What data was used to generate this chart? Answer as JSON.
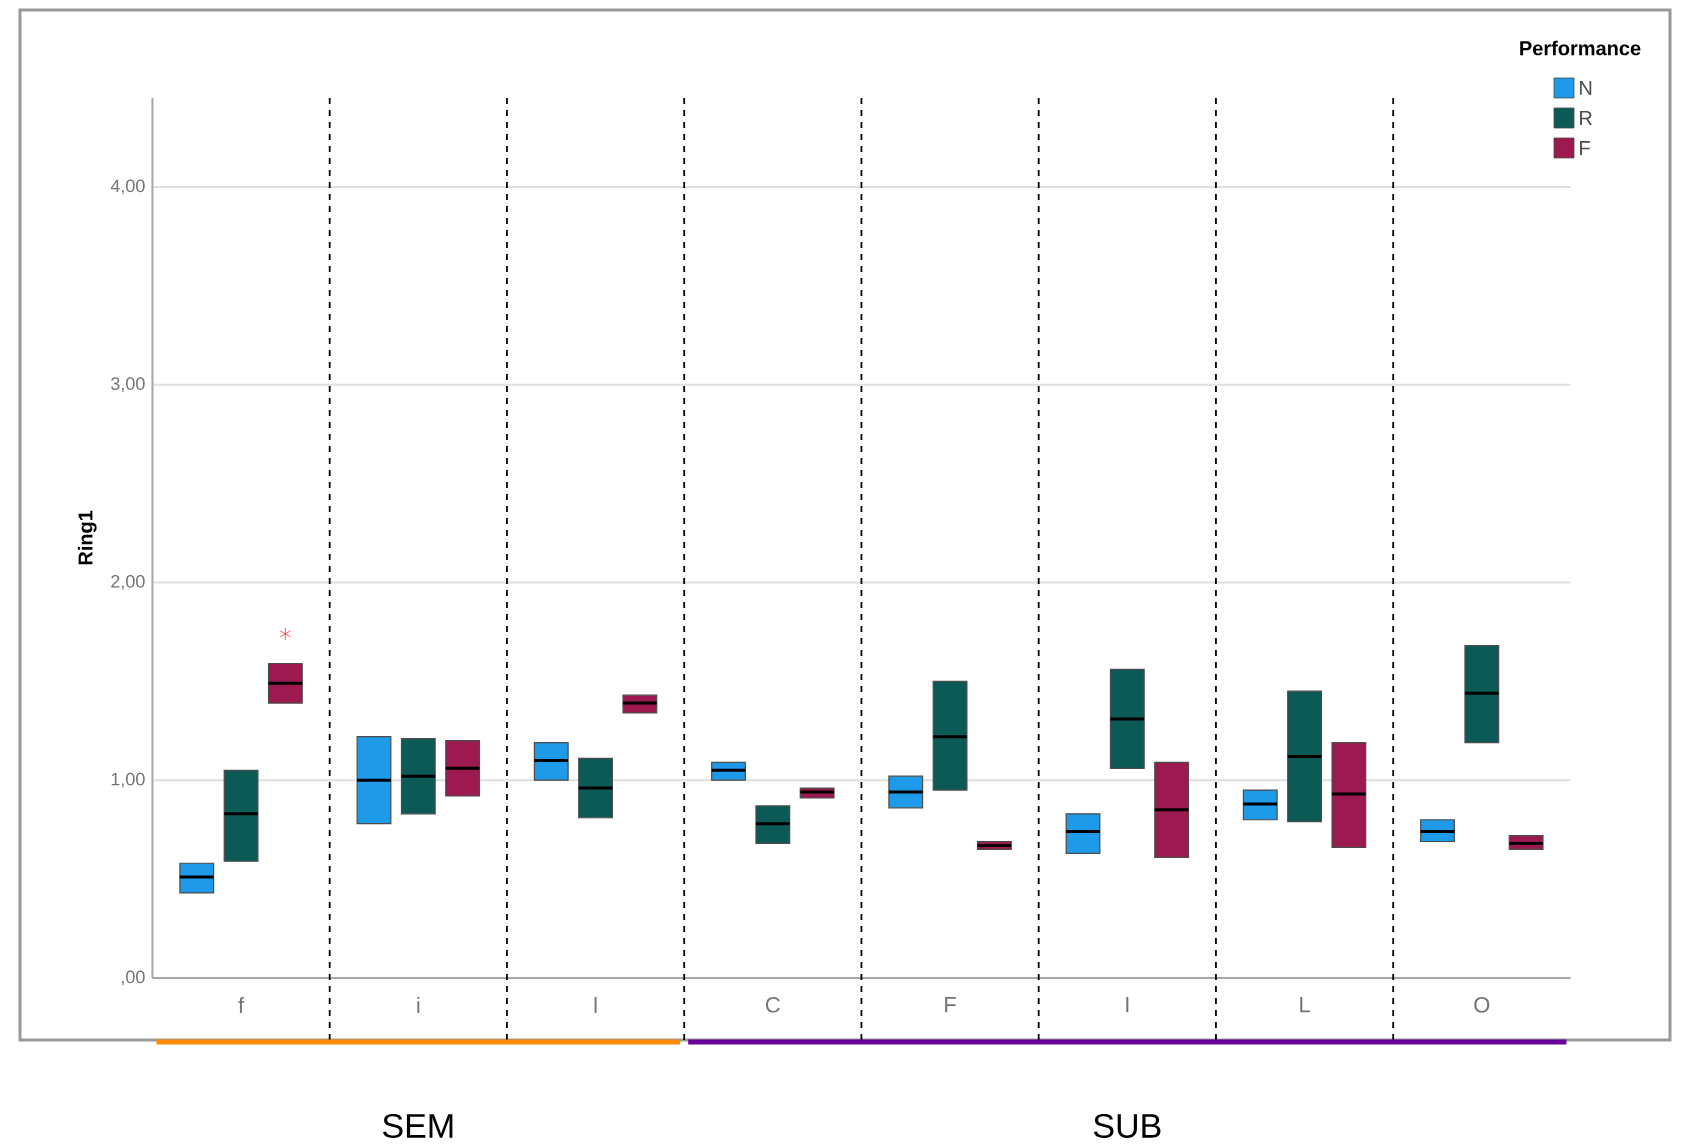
{
  "chart_data": {
    "type": "box",
    "ylabel": "Ring1",
    "legend_title": "Performance",
    "legend": "top right",
    "grid": "y",
    "categories": [
      "f",
      "i",
      "l",
      "C",
      "F",
      "I",
      "L",
      "O"
    ],
    "ylim": [
      0,
      4.45
    ],
    "yticks": [
      {
        "value": 0,
        "label": ",00"
      },
      {
        "value": 1,
        "label": "1,00"
      },
      {
        "value": 2,
        "label": "2,00"
      },
      {
        "value": 3,
        "label": "3,00"
      },
      {
        "value": 4,
        "label": "4,00"
      }
    ],
    "series": [
      {
        "name": "N",
        "color": "#1f9ae8",
        "boxes": [
          {
            "low": 0.43,
            "q1": 0.43,
            "median": 0.51,
            "q3": 0.58,
            "high": 0.58
          },
          {
            "low": 0.78,
            "q1": 0.78,
            "median": 1.0,
            "q3": 1.22,
            "high": 1.22
          },
          {
            "low": 1.0,
            "q1": 1.0,
            "median": 1.1,
            "q3": 1.19,
            "high": 1.19
          },
          {
            "low": 1.0,
            "q1": 1.0,
            "median": 1.05,
            "q3": 1.09,
            "high": 1.09
          },
          {
            "low": 0.86,
            "q1": 0.86,
            "median": 0.94,
            "q3": 1.02,
            "high": 1.02
          },
          {
            "low": 0.63,
            "q1": 0.63,
            "median": 0.74,
            "q3": 0.83,
            "high": 0.83
          },
          {
            "low": 0.8,
            "q1": 0.8,
            "median": 0.88,
            "q3": 0.95,
            "high": 0.95
          },
          {
            "low": 0.69,
            "q1": 0.69,
            "median": 0.74,
            "q3": 0.8,
            "high": 0.8
          }
        ]
      },
      {
        "name": "R",
        "color": "#0b5a55",
        "boxes": [
          {
            "low": 0.59,
            "q1": 0.59,
            "median": 0.83,
            "q3": 1.05,
            "high": 1.05
          },
          {
            "low": 0.83,
            "q1": 0.83,
            "median": 1.02,
            "q3": 1.21,
            "high": 1.21
          },
          {
            "low": 0.81,
            "q1": 0.81,
            "median": 0.96,
            "q3": 1.11,
            "high": 1.11
          },
          {
            "low": 0.68,
            "q1": 0.68,
            "median": 0.78,
            "q3": 0.87,
            "high": 0.87
          },
          {
            "low": 0.95,
            "q1": 0.95,
            "median": 1.22,
            "q3": 1.5,
            "high": 1.5
          },
          {
            "low": 1.06,
            "q1": 1.06,
            "median": 1.31,
            "q3": 1.56,
            "high": 1.56
          },
          {
            "low": 0.79,
            "q1": 0.79,
            "median": 1.12,
            "q3": 1.45,
            "high": 1.45
          },
          {
            "low": 1.19,
            "q1": 1.19,
            "median": 1.44,
            "q3": 1.68,
            "high": 1.68
          }
        ]
      },
      {
        "name": "F",
        "color": "#9c1a4f",
        "boxes": [
          {
            "low": 1.39,
            "q1": 1.39,
            "median": 1.49,
            "q3": 1.59,
            "high": 1.59,
            "outliers": [
              1.74
            ]
          },
          {
            "low": 0.92,
            "q1": 0.92,
            "median": 1.06,
            "q3": 1.2,
            "high": 1.2
          },
          {
            "low": 1.34,
            "q1": 1.34,
            "median": 1.39,
            "q3": 1.43,
            "high": 1.43
          },
          {
            "low": 0.91,
            "q1": 0.91,
            "median": 0.94,
            "q3": 0.96,
            "high": 0.96
          },
          {
            "low": 0.65,
            "q1": 0.65,
            "median": 0.67,
            "q3": 0.69,
            "high": 0.69
          },
          {
            "low": 0.61,
            "q1": 0.61,
            "median": 0.85,
            "q3": 1.09,
            "high": 1.09
          },
          {
            "low": 0.66,
            "q1": 0.66,
            "median": 0.93,
            "q3": 1.19,
            "high": 1.19
          },
          {
            "low": 0.65,
            "q1": 0.65,
            "median": 0.68,
            "q3": 0.72,
            "high": 0.72
          }
        ]
      }
    ],
    "annotations": [
      "SEM",
      "SUB"
    ]
  }
}
